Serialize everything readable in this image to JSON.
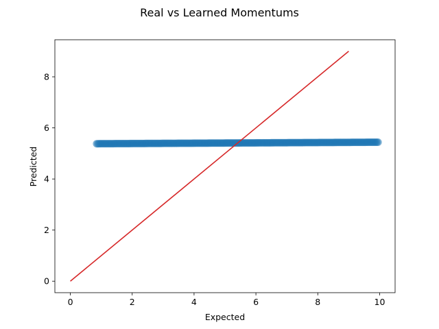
{
  "chart_data": {
    "type": "scatter",
    "title": "Real vs Learned Momentums",
    "xlabel": "Expected",
    "ylabel": "Predicted",
    "xlim": [
      -0.5,
      10.5
    ],
    "ylim": [
      -0.45,
      9.45
    ],
    "xticks": [
      0,
      2,
      4,
      6,
      8,
      10
    ],
    "yticks": [
      0,
      2,
      4,
      6,
      8
    ],
    "grid": false,
    "legend": "none",
    "series": [
      {
        "kind": "scatter",
        "color": "#1f77b4",
        "x_range": [
          0.85,
          9.95
        ],
        "y_start": 5.38,
        "y_end": 5.44,
        "count": 220
      },
      {
        "kind": "line",
        "color": "#d62728",
        "x": [
          0,
          9
        ],
        "y": [
          0,
          9
        ]
      }
    ]
  }
}
